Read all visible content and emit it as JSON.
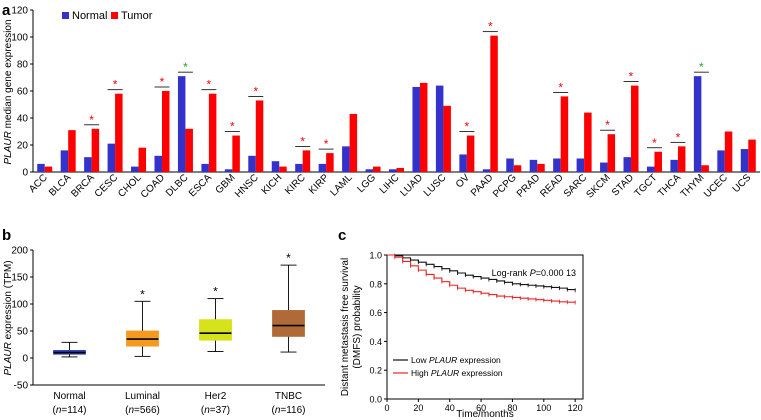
{
  "panel_labels": {
    "a": "a",
    "b": "b",
    "c": "c"
  },
  "chart_data": [
    {
      "panel": "a",
      "type": "bar",
      "ylabel_gene": "PLAUR",
      "ylabel_rest": " median gene expression",
      "ylim": [
        0,
        120
      ],
      "yticks": [
        0,
        20,
        40,
        60,
        80,
        100,
        120
      ],
      "colors": {
        "Normal": "#3333cc",
        "Tumor": "#ff0000",
        "star_red": "#ff0000",
        "star_green": "#22aa22"
      },
      "categories": [
        "ACC",
        "BLCA",
        "BRCA",
        "CESC",
        "CHOL",
        "COAD",
        "DLBC",
        "ESCA",
        "GBM",
        "HNSC",
        "KICH",
        "KIRC",
        "KIRP",
        "LAML",
        "LGG",
        "LIHC",
        "LUAD",
        "LUSC",
        "OV",
        "PAAD",
        "PCPG",
        "PRAD",
        "READ",
        "SARC",
        "SKCM",
        "STAD",
        "TGCT",
        "THCA",
        "THYM",
        "UCEC",
        "UCS"
      ],
      "series": [
        {
          "name": "Normal",
          "values": [
            6,
            16,
            11,
            21,
            4,
            12,
            71,
            6,
            2,
            12,
            8,
            6,
            6,
            19,
            2,
            2,
            63,
            64,
            13,
            2,
            10,
            9,
            10,
            10,
            7,
            11,
            4,
            9,
            71,
            16,
            17
          ]
        },
        {
          "name": "Tumor",
          "values": [
            4,
            31,
            32,
            58,
            18,
            60,
            32,
            58,
            27,
            53,
            4,
            16,
            14,
            43,
            4,
            3,
            66,
            49,
            27,
            101,
            5,
            6,
            56,
            44,
            28,
            64,
            15,
            19,
            5,
            30,
            24
          ]
        }
      ],
      "significance": [
        {
          "category": "BRCA",
          "symbol": "*",
          "color": "red"
        },
        {
          "category": "CESC",
          "symbol": "*",
          "color": "red"
        },
        {
          "category": "COAD",
          "symbol": "*",
          "color": "red"
        },
        {
          "category": "DLBC",
          "symbol": "*",
          "color": "green"
        },
        {
          "category": "ESCA",
          "symbol": "*",
          "color": "red"
        },
        {
          "category": "GBM",
          "symbol": "*",
          "color": "red"
        },
        {
          "category": "HNSC",
          "symbol": "*",
          "color": "red"
        },
        {
          "category": "KIRC",
          "symbol": "*",
          "color": "red"
        },
        {
          "category": "KIRP",
          "symbol": "*",
          "color": "red"
        },
        {
          "category": "OV",
          "symbol": "*",
          "color": "red"
        },
        {
          "category": "PAAD",
          "symbol": "*",
          "color": "red"
        },
        {
          "category": "READ",
          "symbol": "*",
          "color": "red"
        },
        {
          "category": "SKCM",
          "symbol": "*",
          "color": "red"
        },
        {
          "category": "STAD",
          "symbol": "*",
          "color": "red"
        },
        {
          "category": "TGCT",
          "symbol": "*",
          "color": "red"
        },
        {
          "category": "THCA",
          "symbol": "*",
          "color": "red"
        },
        {
          "category": "THYM",
          "symbol": "*",
          "color": "green"
        }
      ],
      "legend": [
        {
          "label": "Normal",
          "color": "#3333cc"
        },
        {
          "label": "Tumor",
          "color": "#ff0000"
        }
      ]
    },
    {
      "panel": "b",
      "type": "box",
      "ylabel_gene": "PLAUR",
      "ylabel_rest": " expression (TPM)",
      "ylim": [
        -50,
        200
      ],
      "yticks": [
        -50,
        0,
        50,
        100,
        150,
        200
      ],
      "boxes": [
        {
          "label": "Normal",
          "n_label": "(n=114)",
          "n_prefix": "(",
          "n_var": "n",
          "n_rest": "=114)",
          "min": 2,
          "q1": 7,
          "median": 10,
          "q3": 14,
          "max": 29,
          "color": "#3340b8",
          "star": ""
        },
        {
          "label": "Luminal",
          "n_label": "(n=566)",
          "n_prefix": "(",
          "n_var": "n",
          "n_rest": "=566)",
          "min": 3,
          "q1": 22,
          "median": 35,
          "q3": 50,
          "max": 105,
          "color": "#f59a1e",
          "star": "*"
        },
        {
          "label": "Her2",
          "n_label": "(n=37)",
          "n_prefix": "(",
          "n_var": "n",
          "n_rest": "=37)",
          "min": 12,
          "q1": 33,
          "median": 46,
          "q3": 71,
          "max": 110,
          "color": "#d6e21a",
          "star": "*"
        },
        {
          "label": "TNBC",
          "n_label": "(n=116)",
          "n_prefix": "(",
          "n_var": "n",
          "n_rest": "=116)",
          "min": 11,
          "q1": 40,
          "median": 60,
          "q3": 88,
          "max": 172,
          "color": "#b06a38",
          "star": "*"
        }
      ]
    },
    {
      "panel": "c",
      "type": "line",
      "xlabel": "Time/months",
      "ylabel_line1": "Distant metastasis free survival",
      "ylabel_line2": "(DMFS) probability",
      "xlim": [
        0,
        125
      ],
      "ylim": [
        0,
        1.0
      ],
      "xticks": [
        0,
        20,
        40,
        60,
        80,
        100,
        120
      ],
      "yticks": [
        0.0,
        0.2,
        0.4,
        0.6,
        0.8,
        1.0
      ],
      "annotation_prefix": "Log-rank ",
      "annotation_var": "P",
      "annotation_value": "=0.000 13",
      "series": [
        {
          "name": "Low PLAUR expression",
          "label_prefix": "Low ",
          "label_gene": "PLAUR",
          "label_rest": " expression",
          "color": "#111111",
          "x": [
            0,
            5,
            10,
            15,
            20,
            25,
            30,
            35,
            40,
            45,
            50,
            55,
            60,
            65,
            70,
            75,
            80,
            85,
            90,
            95,
            100,
            105,
            110,
            115,
            120
          ],
          "y": [
            1.0,
            0.995,
            0.98,
            0.965,
            0.95,
            0.935,
            0.92,
            0.905,
            0.89,
            0.875,
            0.86,
            0.85,
            0.84,
            0.83,
            0.82,
            0.81,
            0.8,
            0.795,
            0.79,
            0.785,
            0.78,
            0.775,
            0.77,
            0.76,
            0.755
          ]
        },
        {
          "name": "High PLAUR expression",
          "label_prefix": "High ",
          "label_gene": "PLAUR",
          "label_rest": " expression",
          "color": "#ee2222",
          "x": [
            0,
            5,
            10,
            15,
            20,
            25,
            30,
            35,
            40,
            45,
            50,
            55,
            60,
            65,
            70,
            75,
            80,
            85,
            90,
            95,
            100,
            105,
            110,
            115,
            120
          ],
          "y": [
            1.0,
            0.985,
            0.955,
            0.925,
            0.895,
            0.865,
            0.84,
            0.815,
            0.79,
            0.77,
            0.755,
            0.745,
            0.735,
            0.725,
            0.715,
            0.71,
            0.705,
            0.7,
            0.695,
            0.69,
            0.685,
            0.68,
            0.675,
            0.672,
            0.67
          ]
        }
      ]
    }
  ]
}
